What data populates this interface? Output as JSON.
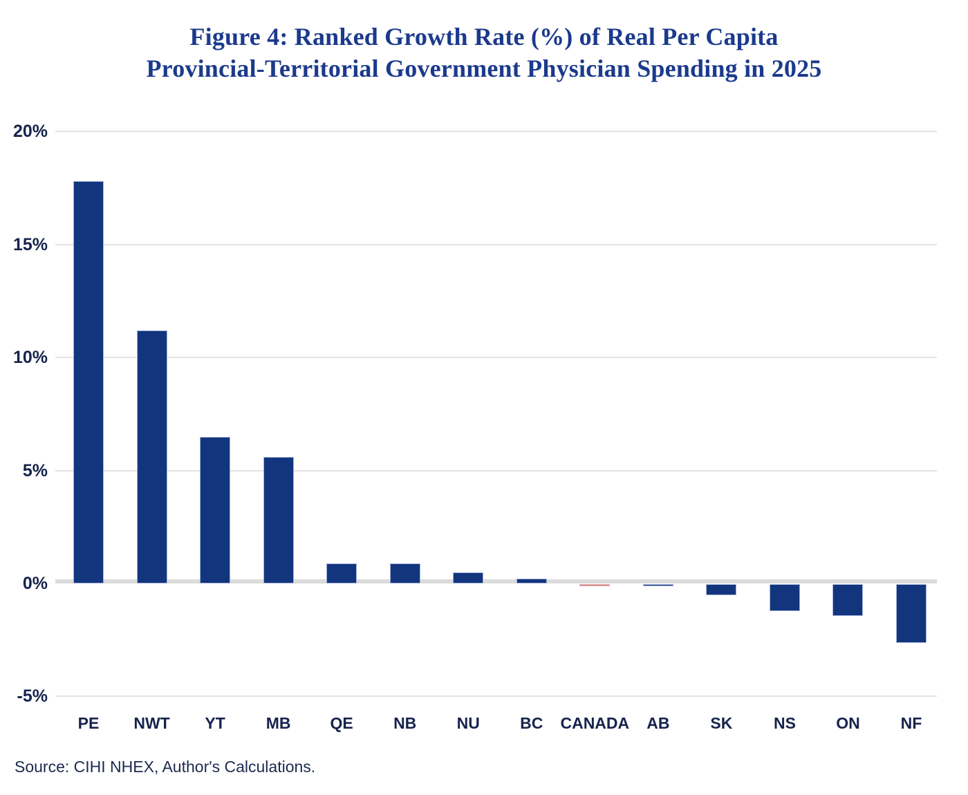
{
  "figure": {
    "title_line1": "Figure 4: Ranked Growth Rate (%) of Real Per Capita",
    "title_line2": "Provincial-Territorial Government Physician Spending in 2025",
    "source": "Source: CIHI NHEX, Author's Calculations."
  },
  "chart_data": {
    "type": "bar",
    "title": "Figure 4: Ranked Growth Rate (%) of Real Per Capita Provincial-Territorial Government Physician Spending in 2025",
    "categories": [
      "PE",
      "NWT",
      "YT",
      "MB",
      "QE",
      "NB",
      "NU",
      "BC",
      "CANADA",
      "AB",
      "SK",
      "NS",
      "ON",
      "NF"
    ],
    "values": [
      17.8,
      11.2,
      6.5,
      5.6,
      0.9,
      0.9,
      0.5,
      0.2,
      -0.1,
      -0.1,
      -0.5,
      -1.2,
      -1.4,
      -2.6
    ],
    "value_unit": "%",
    "highlight_category": "CANADA",
    "ytick_labels": [
      "20%",
      "15%",
      "10%",
      "5%",
      "0%",
      "-5%"
    ],
    "ytick_values": [
      20,
      15,
      10,
      5,
      0,
      -5
    ],
    "ylim": [
      -5,
      20
    ],
    "xlabel": "",
    "ylabel": "",
    "grid": "horizontal",
    "legend": "none",
    "source": "Source: CIHI NHEX, Author's Calculations.",
    "colors": {
      "bar": "#12357E",
      "bar_border": "#A3B2D8",
      "highlight_bar": "#D07C7C",
      "highlight_border": "#E2AEB0",
      "title_text": "#1B3A8C",
      "axis_text": "#16234C",
      "source_text": "#1C2A4E",
      "gridline": "#E3E3E3",
      "zero_line": "#DBDBDB",
      "background": "#FFFFFF"
    }
  }
}
